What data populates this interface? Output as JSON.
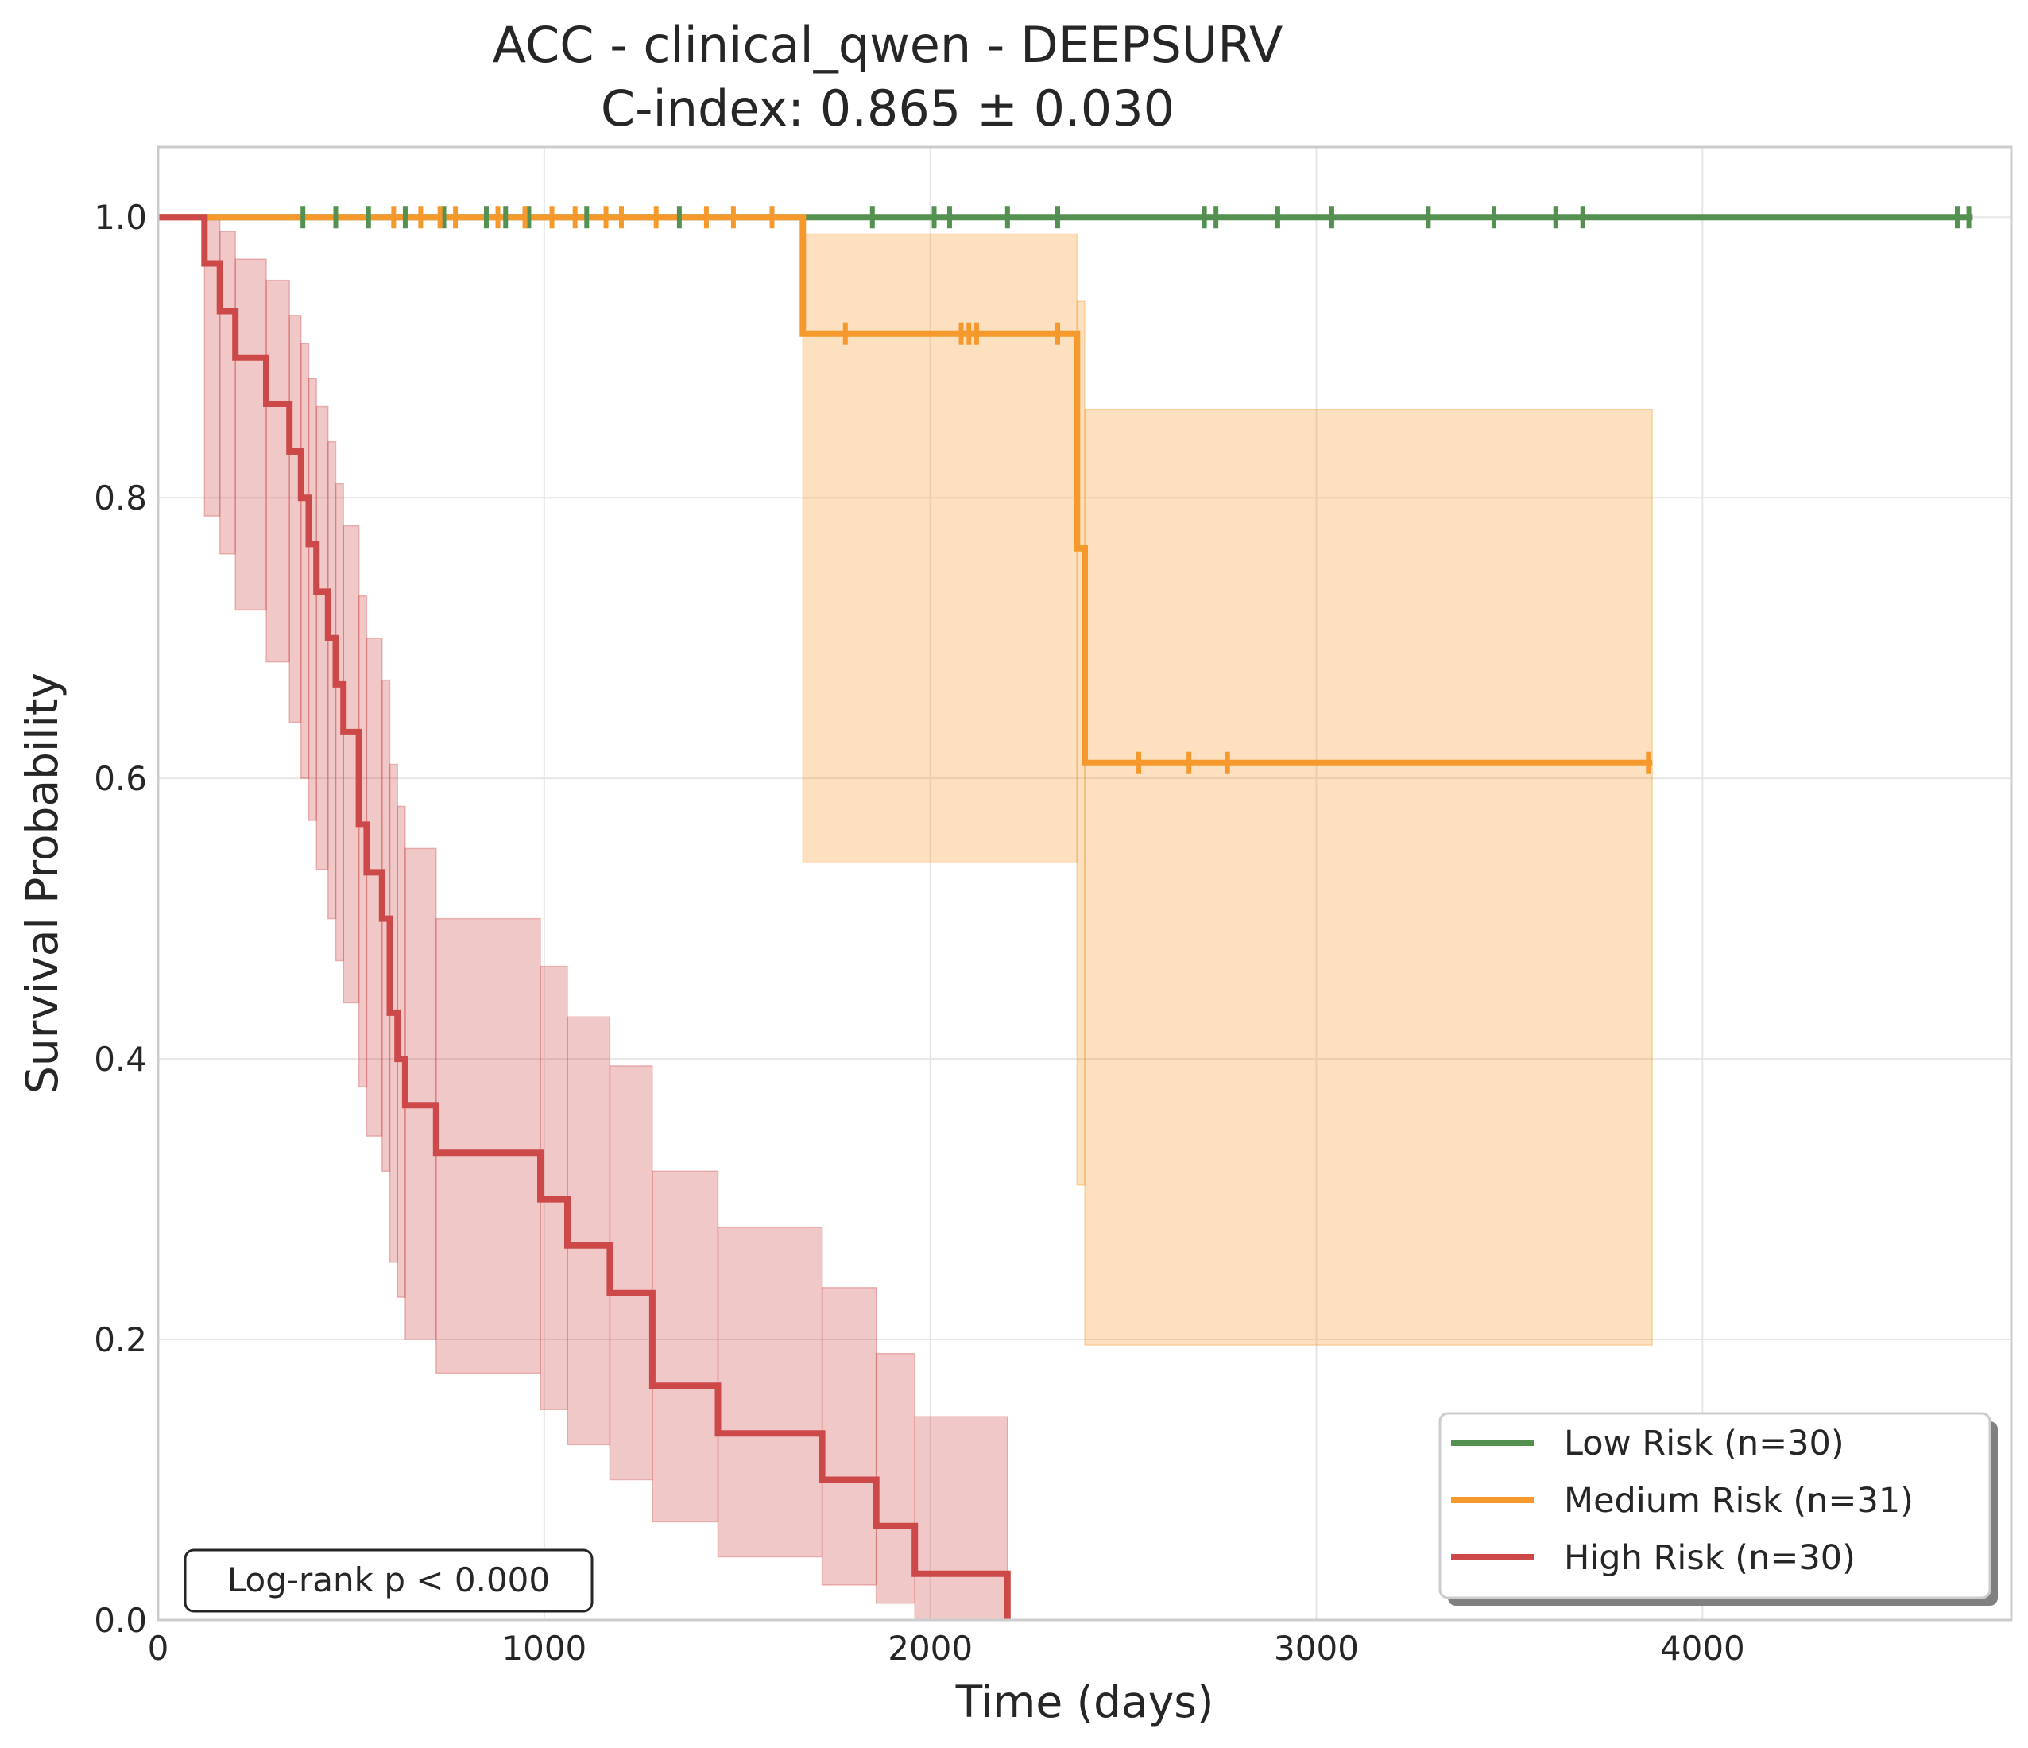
{
  "chart_data": {
    "type": "line",
    "title": "ACC - clinical_qwen - DEEPSURV",
    "subtitle": "C-index: 0.865 ± 0.030",
    "xlabel": "Time (days)",
    "ylabel": "Survival Probability",
    "xlim": [
      0,
      4800
    ],
    "ylim": [
      0,
      1.05
    ],
    "xticks": [
      0,
      1000,
      2000,
      3000,
      4000
    ],
    "xtick_labels": [
      "0",
      "1000",
      "2000",
      "3000",
      "4000"
    ],
    "yticks": [
      0,
      0.2,
      0.4,
      0.6,
      0.8,
      1.0
    ],
    "ytick_labels": [
      "0.0",
      "0.2",
      "0.4",
      "0.6",
      "0.8",
      "1.0"
    ],
    "grid": true,
    "legend_position": "bottom-right",
    "annotation": "Log-rank p < 0.000",
    "series": [
      {
        "name": "Low Risk (n=30)",
        "color": "#54904f",
        "steps": [
          [
            0,
            1.0
          ],
          [
            4700,
            1.0
          ]
        ],
        "censored": [
          [
            375,
            1.0
          ],
          [
            460,
            1.0
          ],
          [
            545,
            1.0
          ],
          [
            640,
            1.0
          ],
          [
            740,
            1.0
          ],
          [
            850,
            1.0
          ],
          [
            900,
            1.0
          ],
          [
            960,
            1.0
          ],
          [
            1110,
            1.0
          ],
          [
            1350,
            1.0
          ],
          [
            1850,
            1.0
          ],
          [
            2010,
            1.0
          ],
          [
            2050,
            1.0
          ],
          [
            2200,
            1.0
          ],
          [
            2330,
            1.0
          ],
          [
            2710,
            1.0
          ],
          [
            2740,
            1.0
          ],
          [
            2900,
            1.0
          ],
          [
            3040,
            1.0
          ],
          [
            3290,
            1.0
          ],
          [
            3460,
            1.0
          ],
          [
            3620,
            1.0
          ],
          [
            3690,
            1.0
          ],
          [
            4660,
            1.0
          ],
          [
            4690,
            1.0
          ]
        ],
        "ci": []
      },
      {
        "name": "Medium Risk (n=31)",
        "color": "#f5992c",
        "steps": [
          [
            0,
            1.0
          ],
          [
            1670,
            1.0
          ],
          [
            1670,
            0.917
          ],
          [
            2380,
            0.917
          ],
          [
            2380,
            0.764
          ],
          [
            2400,
            0.764
          ],
          [
            2400,
            0.611
          ],
          [
            3870,
            0.611
          ]
        ],
        "censored": [
          [
            610,
            1.0
          ],
          [
            680,
            1.0
          ],
          [
            730,
            1.0
          ],
          [
            770,
            1.0
          ],
          [
            880,
            1.0
          ],
          [
            950,
            1.0
          ],
          [
            1020,
            1.0
          ],
          [
            1080,
            1.0
          ],
          [
            1160,
            1.0
          ],
          [
            1200,
            1.0
          ],
          [
            1290,
            1.0
          ],
          [
            1420,
            1.0
          ],
          [
            1490,
            1.0
          ],
          [
            1590,
            1.0
          ],
          [
            1780,
            0.917
          ],
          [
            2080,
            0.917
          ],
          [
            2100,
            0.917
          ],
          [
            2120,
            0.917
          ],
          [
            2330,
            0.917
          ],
          [
            2540,
            0.611
          ],
          [
            2670,
            0.611
          ],
          [
            2770,
            0.611
          ],
          [
            3860,
            0.611
          ]
        ],
        "ci": [
          {
            "x0": 1670,
            "x1": 2380,
            "lo": 0.54,
            "hi": 0.988
          },
          {
            "x0": 2380,
            "x1": 2400,
            "lo": 0.31,
            "hi": 0.94
          },
          {
            "x0": 2400,
            "x1": 3870,
            "lo": 0.196,
            "hi": 0.863
          }
        ]
      },
      {
        "name": "High Risk (n=30)",
        "color": "#cd4848",
        "steps": [
          [
            0,
            1.0
          ],
          [
            120,
            1.0
          ],
          [
            120,
            0.967
          ],
          [
            160,
            0.967
          ],
          [
            160,
            0.933
          ],
          [
            200,
            0.933
          ],
          [
            200,
            0.9
          ],
          [
            280,
            0.9
          ],
          [
            280,
            0.867
          ],
          [
            340,
            0.867
          ],
          [
            340,
            0.833
          ],
          [
            370,
            0.833
          ],
          [
            370,
            0.8
          ],
          [
            390,
            0.8
          ],
          [
            390,
            0.767
          ],
          [
            410,
            0.767
          ],
          [
            410,
            0.733
          ],
          [
            440,
            0.733
          ],
          [
            440,
            0.7
          ],
          [
            460,
            0.7
          ],
          [
            460,
            0.667
          ],
          [
            480,
            0.667
          ],
          [
            480,
            0.633
          ],
          [
            520,
            0.633
          ],
          [
            520,
            0.567
          ],
          [
            540,
            0.567
          ],
          [
            540,
            0.533
          ],
          [
            580,
            0.533
          ],
          [
            580,
            0.5
          ],
          [
            600,
            0.5
          ],
          [
            600,
            0.433
          ],
          [
            620,
            0.433
          ],
          [
            620,
            0.4
          ],
          [
            640,
            0.4
          ],
          [
            640,
            0.367
          ],
          [
            720,
            0.367
          ],
          [
            720,
            0.333
          ],
          [
            990,
            0.333
          ],
          [
            990,
            0.3
          ],
          [
            1060,
            0.3
          ],
          [
            1060,
            0.267
          ],
          [
            1170,
            0.267
          ],
          [
            1170,
            0.233
          ],
          [
            1280,
            0.233
          ],
          [
            1280,
            0.167
          ],
          [
            1450,
            0.167
          ],
          [
            1450,
            0.133
          ],
          [
            1720,
            0.133
          ],
          [
            1720,
            0.1
          ],
          [
            1860,
            0.1
          ],
          [
            1860,
            0.067
          ],
          [
            1960,
            0.067
          ],
          [
            1960,
            0.033
          ],
          [
            2200,
            0.033
          ],
          [
            2200,
            0.0
          ]
        ],
        "censored": [],
        "ci": [
          {
            "x0": 120,
            "x1": 160,
            "lo": 0.787,
            "hi": 1.0
          },
          {
            "x0": 160,
            "x1": 200,
            "lo": 0.76,
            "hi": 0.99
          },
          {
            "x0": 200,
            "x1": 280,
            "lo": 0.72,
            "hi": 0.97
          },
          {
            "x0": 280,
            "x1": 340,
            "lo": 0.683,
            "hi": 0.955
          },
          {
            "x0": 340,
            "x1": 370,
            "lo": 0.64,
            "hi": 0.93
          },
          {
            "x0": 370,
            "x1": 390,
            "lo": 0.6,
            "hi": 0.91
          },
          {
            "x0": 390,
            "x1": 410,
            "lo": 0.57,
            "hi": 0.885
          },
          {
            "x0": 410,
            "x1": 440,
            "lo": 0.535,
            "hi": 0.865
          },
          {
            "x0": 440,
            "x1": 460,
            "lo": 0.5,
            "hi": 0.84
          },
          {
            "x0": 460,
            "x1": 480,
            "lo": 0.47,
            "hi": 0.81
          },
          {
            "x0": 480,
            "x1": 520,
            "lo": 0.44,
            "hi": 0.78
          },
          {
            "x0": 520,
            "x1": 540,
            "lo": 0.38,
            "hi": 0.73
          },
          {
            "x0": 540,
            "x1": 580,
            "lo": 0.345,
            "hi": 0.7
          },
          {
            "x0": 580,
            "x1": 600,
            "lo": 0.32,
            "hi": 0.67
          },
          {
            "x0": 600,
            "x1": 620,
            "lo": 0.255,
            "hi": 0.61
          },
          {
            "x0": 620,
            "x1": 640,
            "lo": 0.23,
            "hi": 0.58
          },
          {
            "x0": 640,
            "x1": 720,
            "lo": 0.2,
            "hi": 0.55
          },
          {
            "x0": 720,
            "x1": 990,
            "lo": 0.176,
            "hi": 0.5
          },
          {
            "x0": 990,
            "x1": 1060,
            "lo": 0.15,
            "hi": 0.466
          },
          {
            "x0": 1060,
            "x1": 1170,
            "lo": 0.125,
            "hi": 0.43
          },
          {
            "x0": 1170,
            "x1": 1280,
            "lo": 0.1,
            "hi": 0.395
          },
          {
            "x0": 1280,
            "x1": 1450,
            "lo": 0.07,
            "hi": 0.32
          },
          {
            "x0": 1450,
            "x1": 1720,
            "lo": 0.045,
            "hi": 0.28
          },
          {
            "x0": 1720,
            "x1": 1860,
            "lo": 0.025,
            "hi": 0.237
          },
          {
            "x0": 1860,
            "x1": 1960,
            "lo": 0.012,
            "hi": 0.19
          },
          {
            "x0": 1960,
            "x1": 2200,
            "lo": 0.0,
            "hi": 0.145
          }
        ]
      }
    ]
  }
}
